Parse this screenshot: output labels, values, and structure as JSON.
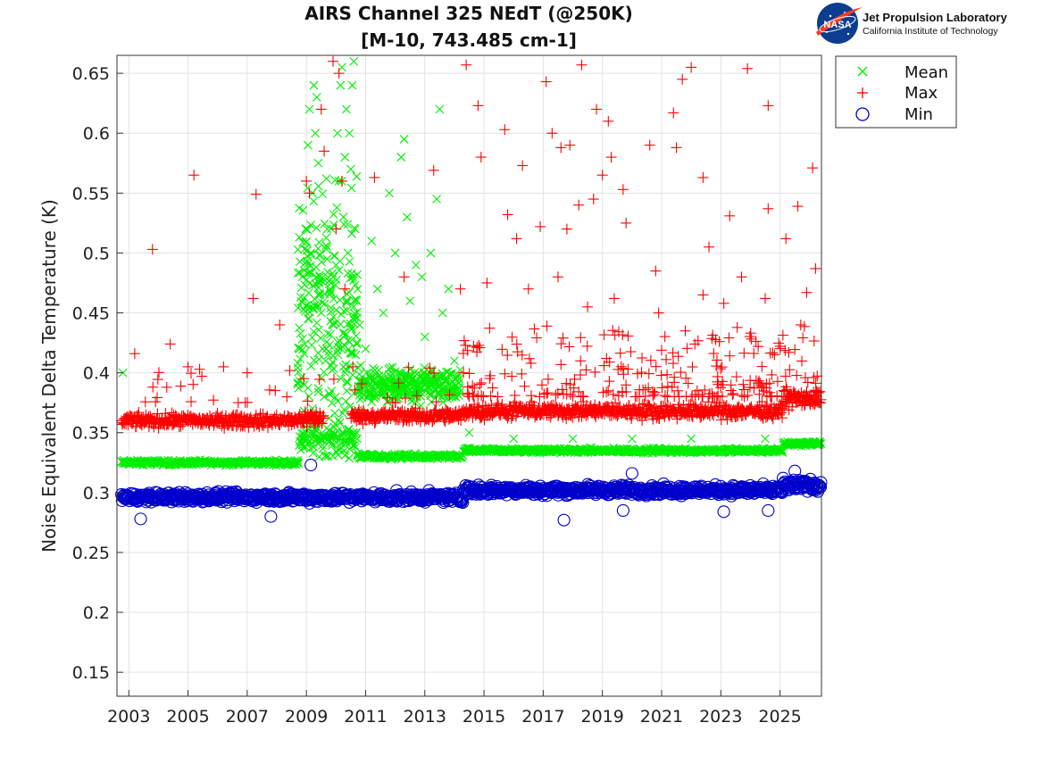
{
  "logo": {
    "org": "Jet Propulsion Laboratory",
    "sub": "California Institute of Technology",
    "badge": "NASA",
    "icon": "nasa-meatball-icon"
  },
  "chart_data": {
    "type": "scatter",
    "title": [
      "AIRS Channel 325 NEdT (@250K)",
      "[M-10, 743.485 cm-1]"
    ],
    "xlabel": "",
    "ylabel": "Noise Equivalent Delta Temperature (K)",
    "xlim": [
      2002.6,
      2026.4
    ],
    "ylim": [
      0.13,
      0.665
    ],
    "xticks": [
      2003,
      2005,
      2007,
      2009,
      2011,
      2013,
      2015,
      2017,
      2019,
      2021,
      2023,
      2025
    ],
    "xtick_labels": [
      "2003",
      "2005",
      "2007",
      "2009",
      "2011",
      "2013",
      "2015",
      "2017",
      "2019",
      "2021",
      "2023",
      "2025"
    ],
    "yticks": [
      0.15,
      0.2,
      0.25,
      0.3,
      0.35,
      0.4,
      0.45,
      0.5,
      0.55,
      0.6,
      0.65
    ],
    "ytick_labels": [
      "0.15",
      "0.2",
      "0.25",
      "0.3",
      "0.35",
      "0.4",
      "0.45",
      "0.5",
      "0.55",
      "0.6",
      "0.65"
    ],
    "grid": true,
    "legend_position": "outside-top-right",
    "series": [
      {
        "name": "Mean",
        "marker": "x",
        "color": "#00ee00",
        "segments": [
          {
            "x0": 2002.75,
            "x1": 2008.75,
            "base": 0.325,
            "spread": 0.003
          },
          {
            "x0": 2008.75,
            "x1": 2010.75,
            "base": 0.345,
            "spread": 0.02
          },
          {
            "x0": 2010.75,
            "x1": 2014.3,
            "base": 0.33,
            "spread": 0.003
          },
          {
            "x0": 2014.3,
            "x1": 2025.1,
            "base": 0.335,
            "spread": 0.003
          },
          {
            "x0": 2025.1,
            "x1": 2026.4,
            "base": 0.341,
            "spread": 0.003
          }
        ],
        "points": [
          [
            2009.0,
            0.52
          ],
          [
            2009.05,
            0.59
          ],
          [
            2009.1,
            0.62
          ],
          [
            2009.15,
            0.5
          ],
          [
            2009.2,
            0.55
          ],
          [
            2009.25,
            0.64
          ],
          [
            2009.3,
            0.6
          ],
          [
            2009.35,
            0.63
          ],
          [
            2009.4,
            0.575
          ],
          [
            2009.45,
            0.48
          ],
          [
            2009.5,
            0.45
          ],
          [
            2009.55,
            0.42
          ],
          [
            2009.6,
            0.38
          ],
          [
            2009.65,
            0.41
          ],
          [
            2009.7,
            0.52
          ],
          [
            2009.8,
            0.47
          ],
          [
            2009.9,
            0.44
          ],
          [
            2010.0,
            0.49
          ],
          [
            2010.05,
            0.6
          ],
          [
            2010.1,
            0.56
          ],
          [
            2010.15,
            0.64
          ],
          [
            2010.2,
            0.655
          ],
          [
            2010.25,
            0.53
          ],
          [
            2010.3,
            0.58
          ],
          [
            2010.35,
            0.62
          ],
          [
            2010.4,
            0.5
          ],
          [
            2010.45,
            0.6
          ],
          [
            2010.5,
            0.57
          ],
          [
            2010.55,
            0.64
          ],
          [
            2010.6,
            0.66
          ],
          [
            2010.65,
            0.52
          ],
          [
            2010.7,
            0.46
          ],
          [
            2010.8,
            0.44
          ],
          [
            2011.0,
            0.42
          ],
          [
            2011.2,
            0.51
          ],
          [
            2011.4,
            0.47
          ],
          [
            2011.6,
            0.45
          ],
          [
            2011.8,
            0.55
          ],
          [
            2012.0,
            0.5
          ],
          [
            2012.2,
            0.58
          ],
          [
            2012.3,
            0.595
          ],
          [
            2012.4,
            0.53
          ],
          [
            2012.5,
            0.46
          ],
          [
            2012.7,
            0.49
          ],
          [
            2012.9,
            0.48
          ],
          [
            2013.0,
            0.43
          ],
          [
            2013.2,
            0.5
          ],
          [
            2013.4,
            0.545
          ],
          [
            2013.5,
            0.62
          ],
          [
            2013.6,
            0.45
          ],
          [
            2013.8,
            0.47
          ],
          [
            2014.0,
            0.41
          ],
          [
            2002.8,
            0.4
          ],
          [
            2014.5,
            0.35
          ],
          [
            2016.0,
            0.345
          ],
          [
            2018.0,
            0.345
          ],
          [
            2020.0,
            0.345
          ],
          [
            2022.0,
            0.345
          ],
          [
            2024.5,
            0.345
          ]
        ],
        "band_x0": 2008.7,
        "band_x1": 2010.75,
        "band_mid": 0.45,
        "band_spread": 0.1,
        "cluster_x0": 2010.75,
        "cluster_x1": 2014.2,
        "cluster_mid": 0.39,
        "cluster_spread": 0.02
      },
      {
        "name": "Max",
        "marker": "+",
        "color": "#ff0000",
        "segments": [
          {
            "x0": 2002.75,
            "x1": 2008.75,
            "base": 0.36,
            "spread": 0.008
          },
          {
            "x0": 2008.75,
            "x1": 2009.6,
            "base": 0.362,
            "spread": 0.01
          },
          {
            "x0": 2010.5,
            "x1": 2014.3,
            "base": 0.364,
            "spread": 0.008
          },
          {
            "x0": 2014.3,
            "x1": 2025.1,
            "base": 0.368,
            "spread": 0.009
          },
          {
            "x0": 2025.1,
            "x1": 2026.4,
            "base": 0.378,
            "spread": 0.011
          }
        ],
        "points": [
          [
            2003.8,
            0.503
          ],
          [
            2005.2,
            0.565
          ],
          [
            2007.3,
            0.549
          ],
          [
            2007.2,
            0.462
          ],
          [
            2008.1,
            0.44
          ],
          [
            2003.2,
            0.416
          ],
          [
            2004.4,
            0.424
          ],
          [
            2005.0,
            0.405
          ],
          [
            2006.2,
            0.405
          ],
          [
            2007.0,
            0.4
          ],
          [
            2009.9,
            0.66
          ],
          [
            2009.5,
            0.62
          ],
          [
            2009.6,
            0.585
          ],
          [
            2010.1,
            0.65
          ],
          [
            2010.2,
            0.56
          ],
          [
            2009.0,
            0.56
          ],
          [
            2009.1,
            0.55
          ],
          [
            2010.0,
            0.52
          ],
          [
            2010.3,
            0.47
          ],
          [
            2011.3,
            0.563
          ],
          [
            2012.3,
            0.48
          ],
          [
            2013.3,
            0.569
          ],
          [
            2014.2,
            0.47
          ],
          [
            2014.4,
            0.657
          ],
          [
            2014.8,
            0.623
          ],
          [
            2014.9,
            0.58
          ],
          [
            2015.7,
            0.603
          ],
          [
            2016.3,
            0.573
          ],
          [
            2017.1,
            0.643
          ],
          [
            2017.3,
            0.6
          ],
          [
            2017.6,
            0.588
          ],
          [
            2017.9,
            0.59
          ],
          [
            2018.3,
            0.657
          ],
          [
            2018.8,
            0.62
          ],
          [
            2019.2,
            0.61
          ],
          [
            2019.0,
            0.565
          ],
          [
            2019.3,
            0.58
          ],
          [
            2020.6,
            0.59
          ],
          [
            2021.4,
            0.617
          ],
          [
            2021.5,
            0.588
          ],
          [
            2021.7,
            0.645
          ],
          [
            2022.0,
            0.655
          ],
          [
            2022.4,
            0.563
          ],
          [
            2023.9,
            0.654
          ],
          [
            2024.6,
            0.623
          ],
          [
            2026.1,
            0.571
          ],
          [
            2025.6,
            0.539
          ],
          [
            2025.2,
            0.512
          ],
          [
            2024.6,
            0.537
          ],
          [
            2023.3,
            0.531
          ],
          [
            2022.6,
            0.505
          ],
          [
            2020.8,
            0.485
          ],
          [
            2019.8,
            0.525
          ],
          [
            2019.7,
            0.553
          ],
          [
            2018.7,
            0.545
          ],
          [
            2018.2,
            0.54
          ],
          [
            2017.8,
            0.52
          ],
          [
            2016.9,
            0.522
          ],
          [
            2016.1,
            0.512
          ],
          [
            2015.8,
            0.532
          ],
          [
            2015.1,
            0.475
          ],
          [
            2016.5,
            0.47
          ],
          [
            2017.5,
            0.48
          ],
          [
            2018.5,
            0.455
          ],
          [
            2019.4,
            0.462
          ],
          [
            2020.9,
            0.45
          ],
          [
            2021.8,
            0.435
          ],
          [
            2023.1,
            0.458
          ],
          [
            2024.5,
            0.462
          ],
          [
            2025.9,
            0.467
          ],
          [
            2026.2,
            0.487
          ],
          [
            2025.7,
            0.44
          ],
          [
            2023.7,
            0.48
          ],
          [
            2022.4,
            0.465
          ]
        ],
        "scatter_x0": 2014.3,
        "scatter_x1": 2026.3,
        "scatter_lo": 0.38,
        "scatter_hi": 0.44
      },
      {
        "name": "Min",
        "marker": "o",
        "color": "#0000cc",
        "segments": [
          {
            "x0": 2002.75,
            "x1": 2014.3,
            "base": 0.296,
            "spread": 0.006
          },
          {
            "x0": 2014.3,
            "x1": 2025.1,
            "base": 0.302,
            "spread": 0.006
          },
          {
            "x0": 2025.1,
            "x1": 2026.4,
            "base": 0.306,
            "spread": 0.007
          }
        ],
        "points": [
          [
            2009.15,
            0.323
          ],
          [
            2017.7,
            0.277
          ],
          [
            2003.4,
            0.278
          ],
          [
            2007.8,
            0.28
          ],
          [
            2019.7,
            0.285
          ],
          [
            2023.1,
            0.284
          ],
          [
            2024.6,
            0.285
          ],
          [
            2020.0,
            0.316
          ],
          [
            2025.5,
            0.318
          ]
        ]
      }
    ]
  }
}
